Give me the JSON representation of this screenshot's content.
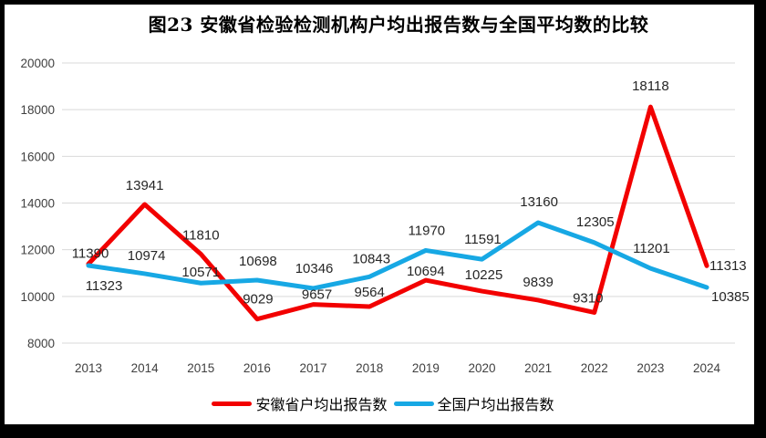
{
  "frame": {
    "border_color": "#000000",
    "background": "#ffffff"
  },
  "chart_data": {
    "type": "line",
    "title": "图23 安徽省检验检测机构户均出报告数与全国平均数的比较",
    "categories": [
      "2013",
      "2014",
      "2015",
      "2016",
      "2017",
      "2018",
      "2019",
      "2020",
      "2021",
      "2022",
      "2023",
      "2024"
    ],
    "series": [
      {
        "name": "安徽省户均出报告数",
        "color": "#f20000",
        "values": [
          11390,
          13941,
          11810,
          9029,
          9657,
          9564,
          10694,
          10225,
          9839,
          9310,
          18118,
          11313
        ]
      },
      {
        "name": "全国户均出报告数",
        "color": "#17a8e4",
        "values": [
          11323,
          10974,
          10571,
          10698,
          10346,
          10843,
          11970,
          11591,
          13160,
          12305,
          11201,
          10385
        ]
      }
    ],
    "ylim": [
      8000,
      20000
    ],
    "ytick_step": 2000,
    "yticks": [
      "8000",
      "10000",
      "12000",
      "14000",
      "16000",
      "18000",
      "20000"
    ],
    "grid": "horizontal",
    "gridline_color": "#d9d9d9",
    "axis_label_color": "#404040",
    "data_label_color": "#262626",
    "legend_position": "bottom",
    "line_width": 5,
    "label_offsets": {
      "series0": [
        [
          2,
          -7
        ],
        [
          0,
          -16
        ],
        [
          0,
          -16
        ],
        [
          1,
          -17
        ],
        [
          4,
          -6
        ],
        [
          0,
          -11
        ],
        [
          0,
          -5
        ],
        [
          2,
          -13
        ],
        [
          0,
          -15
        ],
        [
          -7,
          -11
        ],
        [
          0,
          -18
        ],
        [
          3,
          5,
          "start"
        ]
      ],
      "series1": [
        [
          17,
          27
        ],
        [
          2,
          -15
        ],
        [
          0,
          -7
        ],
        [
          1,
          -16
        ],
        [
          1,
          -17
        ],
        [
          2,
          -15
        ],
        [
          1,
          -17
        ],
        [
          1,
          -17
        ],
        [
          1,
          -18
        ],
        [
          1,
          -18
        ],
        [
          1,
          -17
        ],
        [
          5,
          15,
          "start"
        ]
      ]
    }
  }
}
